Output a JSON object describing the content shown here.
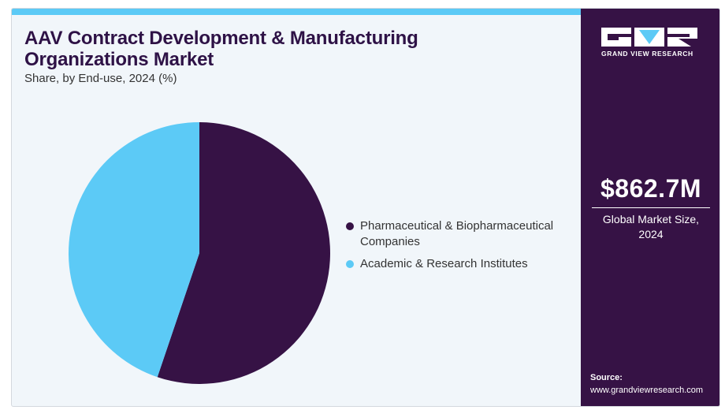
{
  "header": {
    "title": "AAV Contract Development & Manufacturing Organizations Market",
    "subtitle": "Share, by End-use, 2024 (%)"
  },
  "sidebar": {
    "logo_text": "GRAND VIEW RESEARCH",
    "market_value": "$862.7M",
    "market_caption_line1": "Global Market Size,",
    "market_caption_line2": "2024",
    "source_label": "Source:",
    "source_url": "www.grandviewresearch.com"
  },
  "colors": {
    "primary": "#361245",
    "accent": "#5ccaf6",
    "panel_bg": "#f1f6fa"
  },
  "chart_data": {
    "type": "pie",
    "title": "AAV Contract Development & Manufacturing Organizations Market",
    "subtitle": "Share, by End-use, 2024 (%)",
    "legend_position": "right",
    "start_angle": "12 o'clock, clockwise",
    "series": [
      {
        "name": "Pharmaceutical & Biopharmaceutical Companies",
        "value": 55.2,
        "color": "#361245"
      },
      {
        "name": "Academic & Research Institutes",
        "value": 44.8,
        "color": "#5ccaf6"
      }
    ]
  }
}
